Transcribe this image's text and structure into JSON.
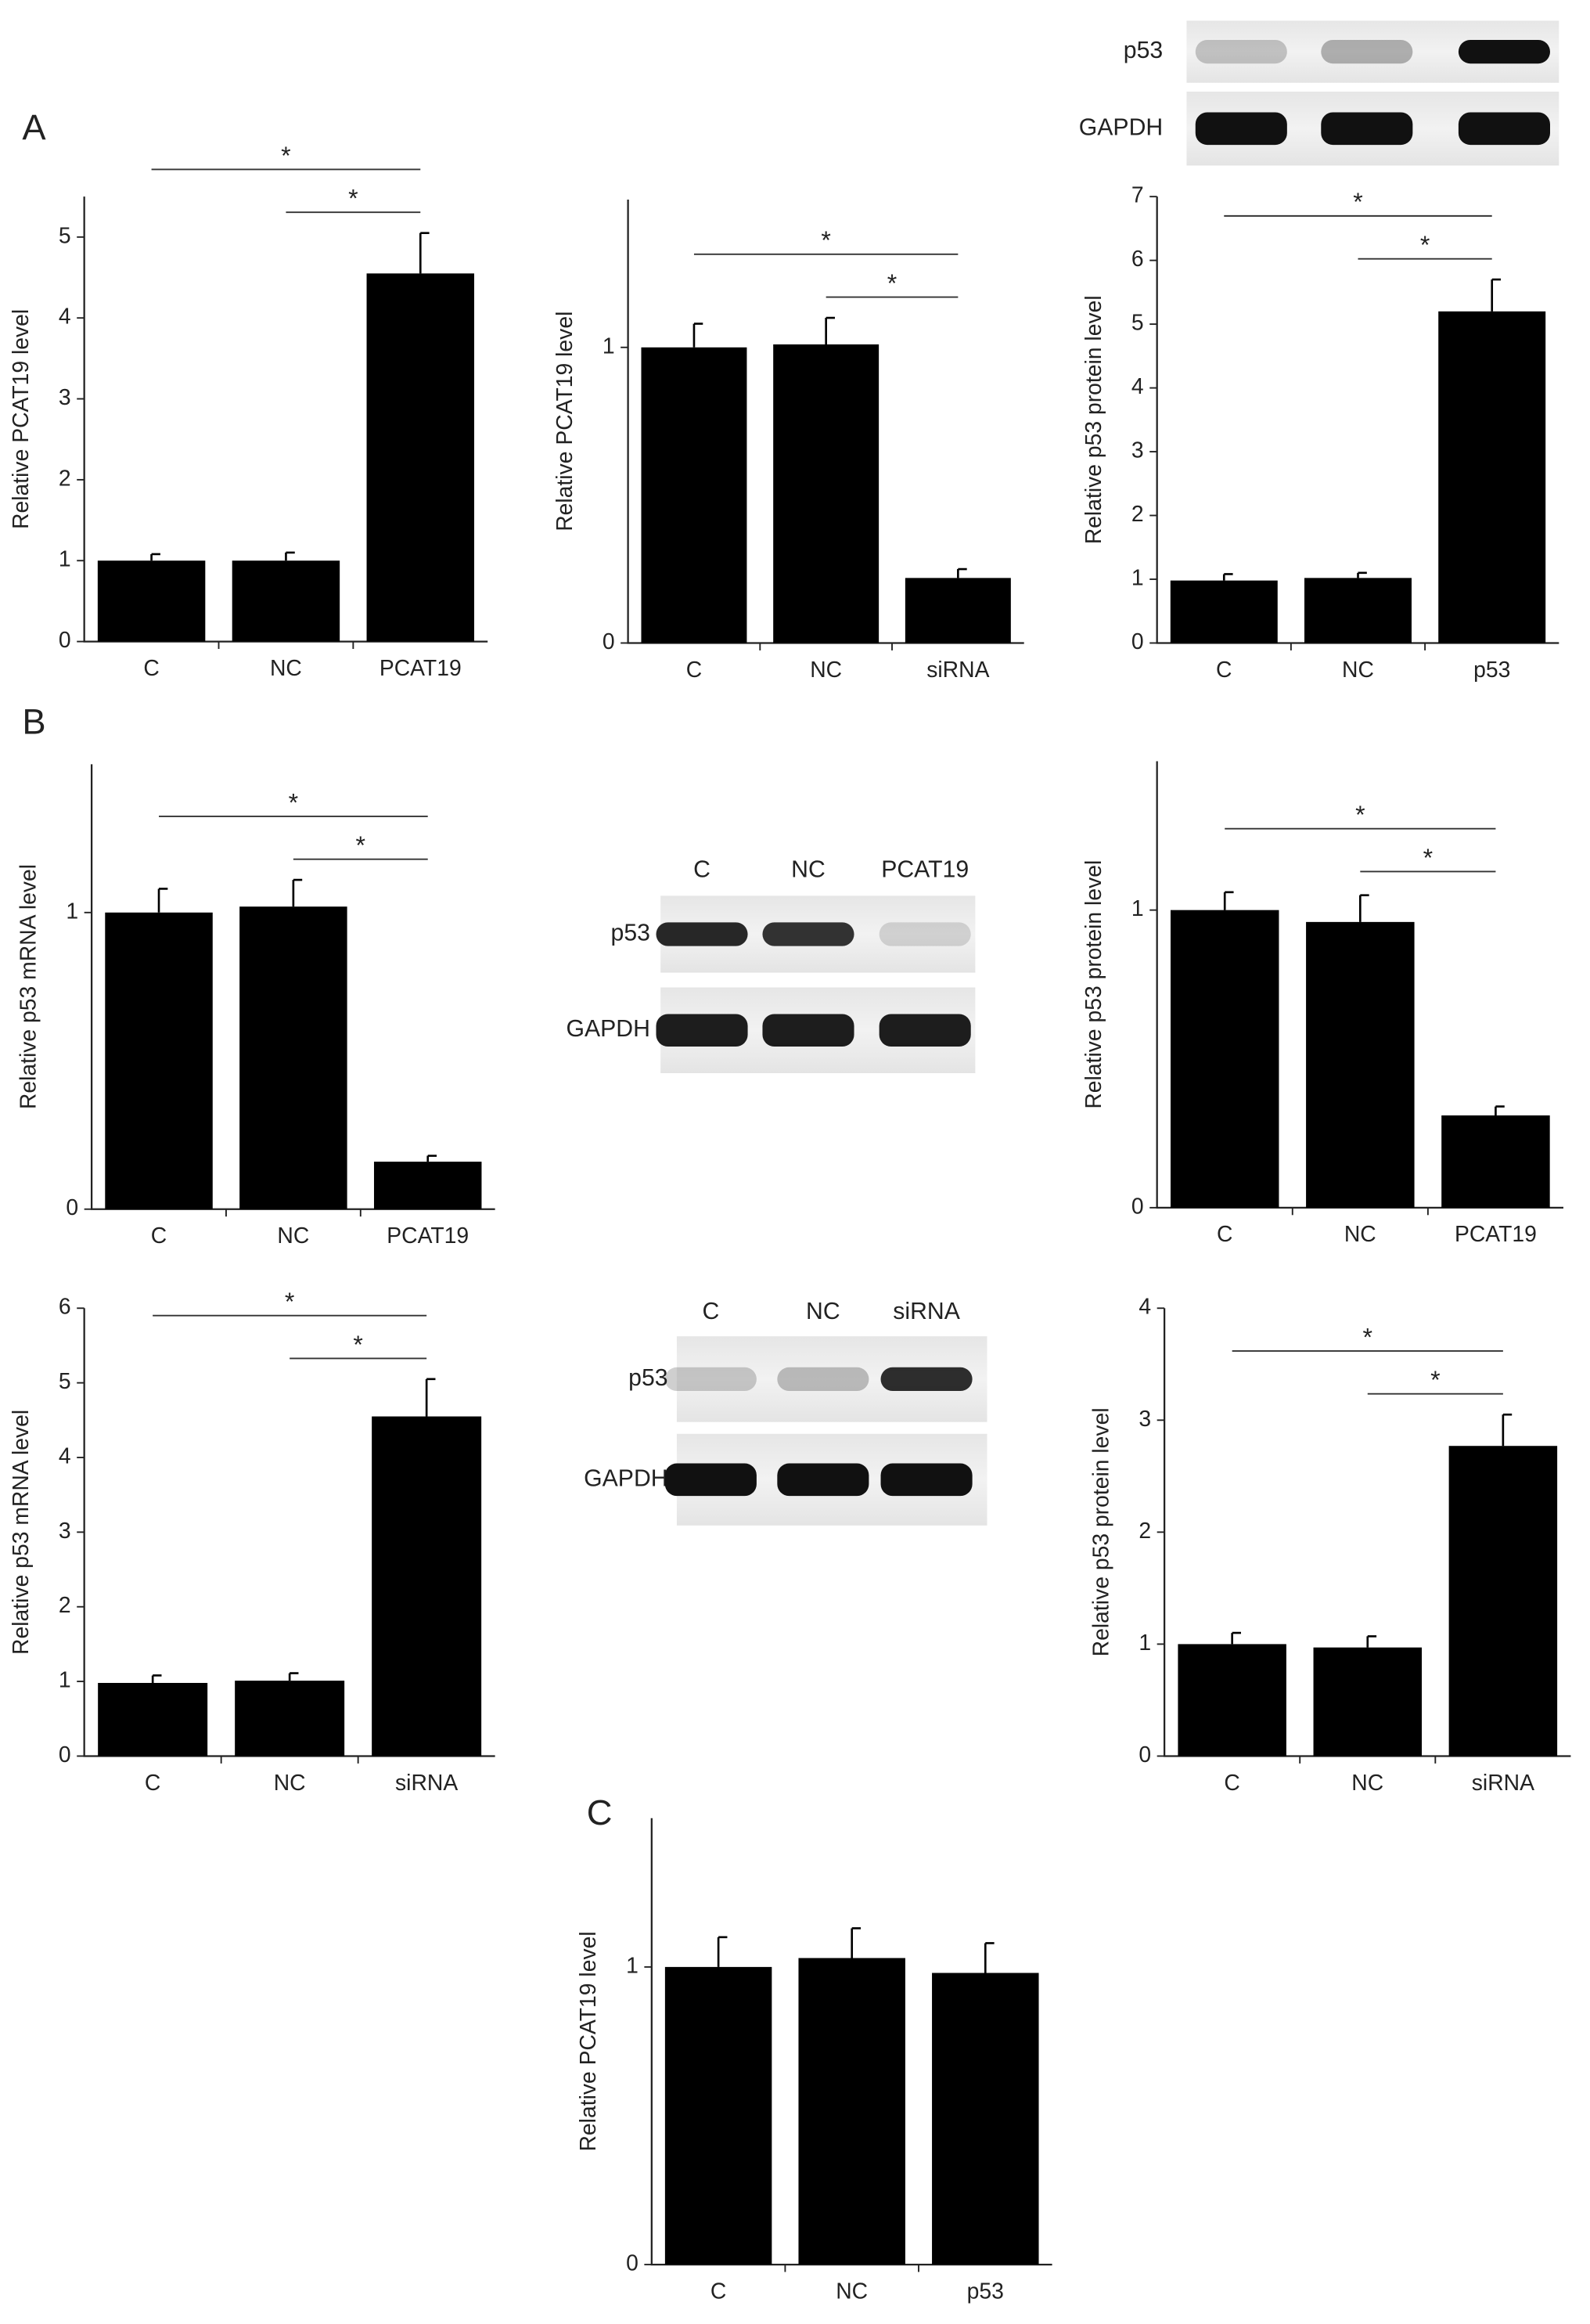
{
  "panel_labels": [
    "A",
    "B",
    "C"
  ],
  "blots": [
    {
      "rows": [
        "p53",
        "GAPDH"
      ]
    },
    {
      "lanes": [
        "C",
        "NC",
        "PCAT19"
      ],
      "rows": [
        "p53",
        "GAPDH"
      ]
    },
    {
      "lanes": [
        "C",
        "NC",
        "siRNA"
      ],
      "rows": [
        "p53",
        "GAPDH"
      ]
    }
  ],
  "chart_data": [
    {
      "type": "bar",
      "y_label": "Relative PCAT19 level",
      "categories": [
        "C",
        "NC",
        "PCAT19"
      ],
      "values": [
        1.0,
        1.0,
        4.55
      ],
      "errors": [
        0.08,
        0.1,
        0.5
      ],
      "color": "#000000",
      "ylim": [
        0,
        5.5
      ],
      "yticks": [
        0,
        1,
        2,
        3,
        4,
        5
      ],
      "brackets": [
        {
          "from": "NC",
          "to": "PCAT19",
          "label": "*"
        },
        {
          "from": "C",
          "to": "PCAT19",
          "label": "*"
        }
      ]
    },
    {
      "type": "bar",
      "y_label": "Relative PCAT19 level",
      "categories": [
        "C",
        "NC",
        "siRNA"
      ],
      "values": [
        1.0,
        1.01,
        0.22
      ],
      "errors": [
        0.08,
        0.09,
        0.03
      ],
      "color": "#000000",
      "ylim": [
        0,
        1.5
      ],
      "yticks": [
        0,
        1
      ],
      "brackets": [
        {
          "from": "NC",
          "to": "siRNA",
          "label": "*"
        },
        {
          "from": "C",
          "to": "siRNA",
          "label": "*"
        }
      ]
    },
    {
      "type": "bar",
      "y_label": "Relative p53 protein level",
      "categories": [
        "C",
        "NC",
        "p53"
      ],
      "values": [
        0.98,
        1.02,
        5.2
      ],
      "errors": [
        0.1,
        0.08,
        0.5
      ],
      "color": "#000000",
      "ylim": [
        0,
        7
      ],
      "yticks": [
        0,
        1,
        2,
        3,
        4,
        5,
        6,
        7
      ],
      "brackets": [
        {
          "from": "NC",
          "to": "p53",
          "label": "*"
        },
        {
          "from": "C",
          "to": "p53",
          "label": "*"
        }
      ]
    },
    {
      "type": "bar",
      "y_label": "Relative p53 mRNA level",
      "categories": [
        "C",
        "NC",
        "PCAT19"
      ],
      "values": [
        1.0,
        1.02,
        0.16
      ],
      "errors": [
        0.08,
        0.09,
        0.02
      ],
      "color": "#000000",
      "ylim": [
        0,
        1.5
      ],
      "yticks": [
        0,
        1
      ],
      "brackets": [
        {
          "from": "NC",
          "to": "PCAT19",
          "label": "*"
        },
        {
          "from": "C",
          "to": "PCAT19",
          "label": "*"
        }
      ]
    },
    {
      "type": "bar",
      "y_label": "Relative p53 protein level",
      "categories": [
        "C",
        "NC",
        "PCAT19"
      ],
      "values": [
        1.0,
        0.96,
        0.31
      ],
      "errors": [
        0.06,
        0.09,
        0.03
      ],
      "color": "#000000",
      "ylim": [
        0,
        1.5
      ],
      "yticks": [
        0,
        1
      ],
      "brackets": [
        {
          "from": "NC",
          "to": "PCAT19",
          "label": "*"
        },
        {
          "from": "C",
          "to": "PCAT19",
          "label": "*"
        }
      ]
    },
    {
      "type": "bar",
      "y_label": "Relative p53 mRNA level",
      "categories": [
        "C",
        "NC",
        "siRNA"
      ],
      "values": [
        0.98,
        1.01,
        4.55
      ],
      "errors": [
        0.1,
        0.1,
        0.5
      ],
      "color": "#000000",
      "ylim": [
        0,
        6
      ],
      "yticks": [
        0,
        1,
        2,
        3,
        4,
        5,
        6
      ],
      "brackets": [
        {
          "from": "NC",
          "to": "siRNA",
          "label": "*"
        },
        {
          "from": "C",
          "to": "siRNA",
          "label": "*"
        }
      ]
    },
    {
      "type": "bar",
      "y_label": "Relative p53 protein level",
      "categories": [
        "C",
        "NC",
        "siRNA"
      ],
      "values": [
        1.0,
        0.97,
        2.77
      ],
      "errors": [
        0.1,
        0.1,
        0.28
      ],
      "color": "#000000",
      "ylim": [
        0,
        4
      ],
      "yticks": [
        0,
        1,
        2,
        3,
        4
      ],
      "brackets": [
        {
          "from": "NC",
          "to": "siRNA",
          "label": "*"
        },
        {
          "from": "C",
          "to": "siRNA",
          "label": "*"
        }
      ]
    },
    {
      "type": "bar",
      "y_label": "Relative PCAT19 level",
      "categories": [
        "C",
        "NC",
        "p53"
      ],
      "values": [
        1.0,
        1.03,
        0.98
      ],
      "errors": [
        0.1,
        0.1,
        0.1
      ],
      "color": "#000000",
      "ylim": [
        0,
        1.5
      ],
      "yticks": [
        0,
        1
      ]
    }
  ]
}
